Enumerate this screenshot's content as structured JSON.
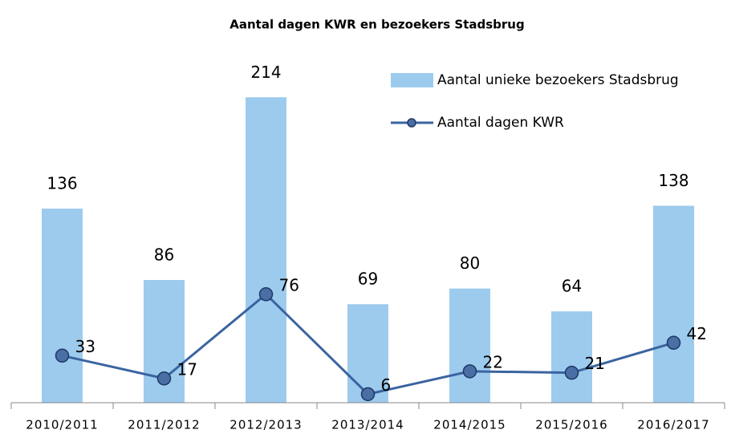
{
  "chart_data": {
    "type": "bar_line",
    "title": "Aantal dagen KWR en bezoekers Stadsbrug",
    "categories": [
      "2010/2011",
      "2011/2012",
      "2012/2013",
      "2013/2014",
      "2014/2015",
      "2015/2016",
      "2016/2017"
    ],
    "series": [
      {
        "name": "Aantal unieke bezoekers Stadsbrug",
        "type": "bar",
        "color": "#9dcbee",
        "values": [
          136,
          86,
          214,
          69,
          80,
          64,
          138
        ]
      },
      {
        "name": "Aantal dagen KWR",
        "type": "line",
        "color": "#3a64a0",
        "marker_color": "#4a6fa5",
        "values": [
          33,
          17,
          76,
          6,
          22,
          21,
          42
        ]
      }
    ],
    "ylim": [
      0,
      240
    ],
    "legend": "upper right"
  }
}
